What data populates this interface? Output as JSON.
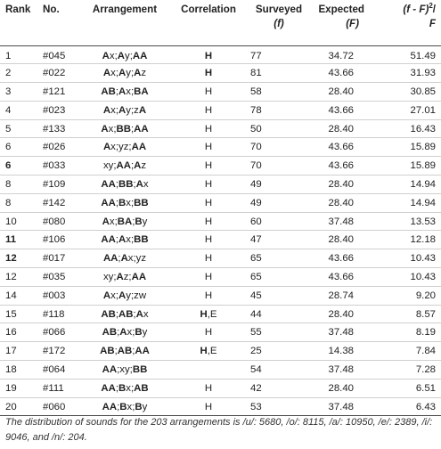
{
  "table": {
    "headers": {
      "rank": "Rank",
      "no": "No.",
      "arrangement": "Arrangement",
      "correlation": "Correlation",
      "surveyed_line1": "Surveyed",
      "surveyed_line2": "(f)",
      "expected_line1": "Expected",
      "expected_line2": "(F)",
      "ratio_line1a": "(f - F)",
      "ratio_sup": "2",
      "ratio_line1b": "/",
      "ratio_line2": "F"
    },
    "rows": [
      {
        "rank": "1",
        "rank_bold": false,
        "no": "#045",
        "arrangement": [
          [
            "A",
            1
          ],
          [
            "x;",
            0
          ],
          [
            "A",
            1
          ],
          [
            "y;",
            0
          ],
          [
            "AA",
            1
          ]
        ],
        "correlation": [
          [
            "H",
            1
          ]
        ],
        "surveyed": "77",
        "expected": "34.72",
        "ratio": "51.49"
      },
      {
        "rank": "2",
        "rank_bold": false,
        "no": "#022",
        "arrangement": [
          [
            "A",
            1
          ],
          [
            "x;",
            0
          ],
          [
            "A",
            1
          ],
          [
            "y;",
            0
          ],
          [
            "A",
            1
          ],
          [
            "z",
            0
          ]
        ],
        "correlation": [
          [
            "H",
            1
          ]
        ],
        "surveyed": "81",
        "expected": "43.66",
        "ratio": "31.93"
      },
      {
        "rank": "3",
        "rank_bold": false,
        "no": "#121",
        "arrangement": [
          [
            "AB",
            1
          ],
          [
            ";",
            0
          ],
          [
            "A",
            1
          ],
          [
            "x;",
            0
          ],
          [
            "BA",
            1
          ]
        ],
        "correlation": [
          [
            "H",
            0
          ]
        ],
        "surveyed": "58",
        "expected": "28.40",
        "ratio": "30.85"
      },
      {
        "rank": "4",
        "rank_bold": false,
        "no": "#023",
        "arrangement": [
          [
            "A",
            1
          ],
          [
            "x;",
            0
          ],
          [
            "A",
            1
          ],
          [
            "y;z",
            0
          ],
          [
            "A",
            1
          ]
        ],
        "correlation": [
          [
            "H",
            0
          ]
        ],
        "surveyed": "78",
        "expected": "43.66",
        "ratio": "27.01"
      },
      {
        "rank": "5",
        "rank_bold": false,
        "no": "#133",
        "arrangement": [
          [
            "A",
            1
          ],
          [
            "x;",
            0
          ],
          [
            "BB",
            1
          ],
          [
            ";",
            0
          ],
          [
            "AA",
            1
          ]
        ],
        "correlation": [
          [
            "H",
            0
          ]
        ],
        "surveyed": "50",
        "expected": "28.40",
        "ratio": "16.43"
      },
      {
        "rank": "6",
        "rank_bold": false,
        "no": "#026",
        "arrangement": [
          [
            "A",
            1
          ],
          [
            "x;yz;",
            0
          ],
          [
            "AA",
            1
          ]
        ],
        "correlation": [
          [
            "H",
            0
          ]
        ],
        "surveyed": "70",
        "expected": "43.66",
        "ratio": "15.89"
      },
      {
        "rank": "6",
        "rank_bold": true,
        "no": "#033",
        "arrangement": [
          [
            "xy;",
            0
          ],
          [
            "AA",
            1
          ],
          [
            ";",
            0
          ],
          [
            "A",
            1
          ],
          [
            "z",
            0
          ]
        ],
        "correlation": [
          [
            "H",
            0
          ]
        ],
        "surveyed": "70",
        "expected": "43.66",
        "ratio": "15.89"
      },
      {
        "rank": "8",
        "rank_bold": false,
        "no": "#109",
        "arrangement": [
          [
            "AA",
            1
          ],
          [
            ";",
            0
          ],
          [
            "BB",
            1
          ],
          [
            ";",
            0
          ],
          [
            "A",
            1
          ],
          [
            "x",
            0
          ]
        ],
        "correlation": [
          [
            "H",
            0
          ]
        ],
        "surveyed": "49",
        "expected": "28.40",
        "ratio": "14.94"
      },
      {
        "rank": "8",
        "rank_bold": false,
        "no": "#142",
        "arrangement": [
          [
            "AA",
            1
          ],
          [
            ";",
            0
          ],
          [
            "B",
            1
          ],
          [
            "x;",
            0
          ],
          [
            "BB",
            1
          ]
        ],
        "correlation": [
          [
            "H",
            0
          ]
        ],
        "surveyed": "49",
        "expected": "28.40",
        "ratio": "14.94"
      },
      {
        "rank": "10",
        "rank_bold": false,
        "no": "#080",
        "arrangement": [
          [
            "A",
            1
          ],
          [
            "x;",
            0
          ],
          [
            "BA",
            1
          ],
          [
            ";",
            0
          ],
          [
            "B",
            1
          ],
          [
            "y",
            0
          ]
        ],
        "correlation": [
          [
            "H",
            0
          ]
        ],
        "surveyed": "60",
        "expected": "37.48",
        "ratio": "13.53"
      },
      {
        "rank": "11",
        "rank_bold": true,
        "no": "#106",
        "arrangement": [
          [
            "AA",
            1
          ],
          [
            ";",
            0
          ],
          [
            "A",
            1
          ],
          [
            "x;",
            0
          ],
          [
            "BB",
            1
          ]
        ],
        "correlation": [
          [
            "H",
            0
          ]
        ],
        "surveyed": "47",
        "expected": "28.40",
        "ratio": "12.18"
      },
      {
        "rank": "12",
        "rank_bold": true,
        "no": "#017",
        "arrangement": [
          [
            "AA",
            1
          ],
          [
            ";",
            0
          ],
          [
            "A",
            1
          ],
          [
            "x;yz",
            0
          ]
        ],
        "correlation": [
          [
            "H",
            0
          ]
        ],
        "surveyed": "65",
        "expected": "43.66",
        "ratio": "10.43"
      },
      {
        "rank": "12",
        "rank_bold": false,
        "no": "#035",
        "arrangement": [
          [
            "xy;",
            0
          ],
          [
            "A",
            1
          ],
          [
            "z;",
            0
          ],
          [
            "AA",
            1
          ]
        ],
        "correlation": [
          [
            "H",
            0
          ]
        ],
        "surveyed": "65",
        "expected": "43.66",
        "ratio": "10.43"
      },
      {
        "rank": "14",
        "rank_bold": false,
        "no": "#003",
        "arrangement": [
          [
            "A",
            1
          ],
          [
            "x;",
            0
          ],
          [
            "A",
            1
          ],
          [
            "y;zw",
            0
          ]
        ],
        "correlation": [
          [
            "H",
            0
          ]
        ],
        "surveyed": "45",
        "expected": "28.74",
        "ratio": "9.20"
      },
      {
        "rank": "15",
        "rank_bold": false,
        "no": "#118",
        "arrangement": [
          [
            "AB",
            1
          ],
          [
            ";",
            0
          ],
          [
            "AB",
            1
          ],
          [
            ";",
            0
          ],
          [
            "A",
            1
          ],
          [
            "x",
            0
          ]
        ],
        "correlation": [
          [
            "H",
            1
          ],
          [
            ",E",
            0
          ]
        ],
        "surveyed": "44",
        "expected": "28.40",
        "ratio": "8.57"
      },
      {
        "rank": "16",
        "rank_bold": false,
        "no": "#066",
        "arrangement": [
          [
            "AB",
            1
          ],
          [
            ";",
            0
          ],
          [
            "A",
            1
          ],
          [
            "x;",
            0
          ],
          [
            "B",
            1
          ],
          [
            "y",
            0
          ]
        ],
        "correlation": [
          [
            "H",
            0
          ]
        ],
        "surveyed": "55",
        "expected": "37.48",
        "ratio": "8.19"
      },
      {
        "rank": "17",
        "rank_bold": false,
        "no": "#172",
        "arrangement": [
          [
            "AB",
            1
          ],
          [
            ";",
            0
          ],
          [
            "AB",
            1
          ],
          [
            ";",
            0
          ],
          [
            "AA",
            1
          ]
        ],
        "correlation": [
          [
            "H",
            1
          ],
          [
            ",E",
            0
          ]
        ],
        "surveyed": "25",
        "expected": "14.38",
        "ratio": "7.84"
      },
      {
        "rank": "18",
        "rank_bold": false,
        "no": "#064",
        "arrangement": [
          [
            "AA",
            1
          ],
          [
            ";xy;",
            0
          ],
          [
            "BB",
            1
          ]
        ],
        "correlation": [],
        "surveyed": "54",
        "expected": "37.48",
        "ratio": "7.28"
      },
      {
        "rank": "19",
        "rank_bold": false,
        "no": "#111",
        "arrangement": [
          [
            "AA",
            1
          ],
          [
            ";",
            0
          ],
          [
            "B",
            1
          ],
          [
            "x;",
            0
          ],
          [
            "AB",
            1
          ]
        ],
        "correlation": [
          [
            "H",
            0
          ]
        ],
        "surveyed": "42",
        "expected": "28.40",
        "ratio": "6.51"
      },
      {
        "rank": "20",
        "rank_bold": false,
        "no": "#060",
        "arrangement": [
          [
            "AA",
            1
          ],
          [
            ";",
            0
          ],
          [
            "B",
            1
          ],
          [
            "x;",
            0
          ],
          [
            "B",
            1
          ],
          [
            "y",
            0
          ]
        ],
        "correlation": [
          [
            "H",
            0
          ]
        ],
        "surveyed": "53",
        "expected": "37.48",
        "ratio": "6.43"
      }
    ]
  },
  "footnote": "The distribution of sounds for the 203 arrangements is /u/: 5680, /o/: 8115, /a/: 10950, /e/: 2389, /i/: 9046, and /n/: 204."
}
